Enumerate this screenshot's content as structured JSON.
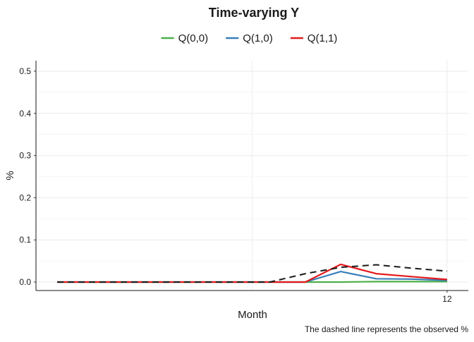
{
  "chart_data": {
    "type": "line",
    "title": "Time-varying Y",
    "xlabel": "Month",
    "ylabel": "%",
    "caption": "The dashed line represents the observed %",
    "x": [
      1,
      2,
      3,
      4,
      5,
      6,
      7,
      8,
      9,
      10,
      11,
      12
    ],
    "x_tick_labels": [
      "12"
    ],
    "x_tick_values": [
      12
    ],
    "xlim": [
      0.4,
      12.6
    ],
    "ylim": [
      -0.02,
      0.525
    ],
    "y_ticks": [
      0.0,
      0.1,
      0.2,
      0.3,
      0.4,
      0.5
    ],
    "y_tick_labels": [
      "0.0",
      "0.1",
      "0.2",
      "0.3",
      "0.4",
      "0.5"
    ],
    "grid": true,
    "legend_position": "top",
    "series": [
      {
        "name": "Q(0,0)",
        "color": "#4daf4a",
        "values": [
          0,
          0,
          0,
          0,
          0,
          0,
          0,
          0,
          0,
          0.001,
          0.001,
          0.001
        ]
      },
      {
        "name": "Q(1,0)",
        "color": "#377eb8",
        "values": [
          0,
          0,
          0,
          0,
          0,
          0,
          0,
          0,
          0.025,
          0.008,
          0.007,
          0.004
        ]
      },
      {
        "name": "Q(1,1)",
        "color": "#e41a1c",
        "values": [
          0,
          0,
          0,
          0,
          0,
          0,
          0,
          0,
          0.042,
          0.02,
          0.013,
          0.006
        ]
      }
    ],
    "observed": {
      "style": "dashed",
      "color": "#1a1a1a",
      "values": [
        0,
        0,
        0,
        0,
        0,
        0,
        0,
        0.02,
        0.035,
        0.041,
        0.033,
        0.026
      ]
    }
  }
}
